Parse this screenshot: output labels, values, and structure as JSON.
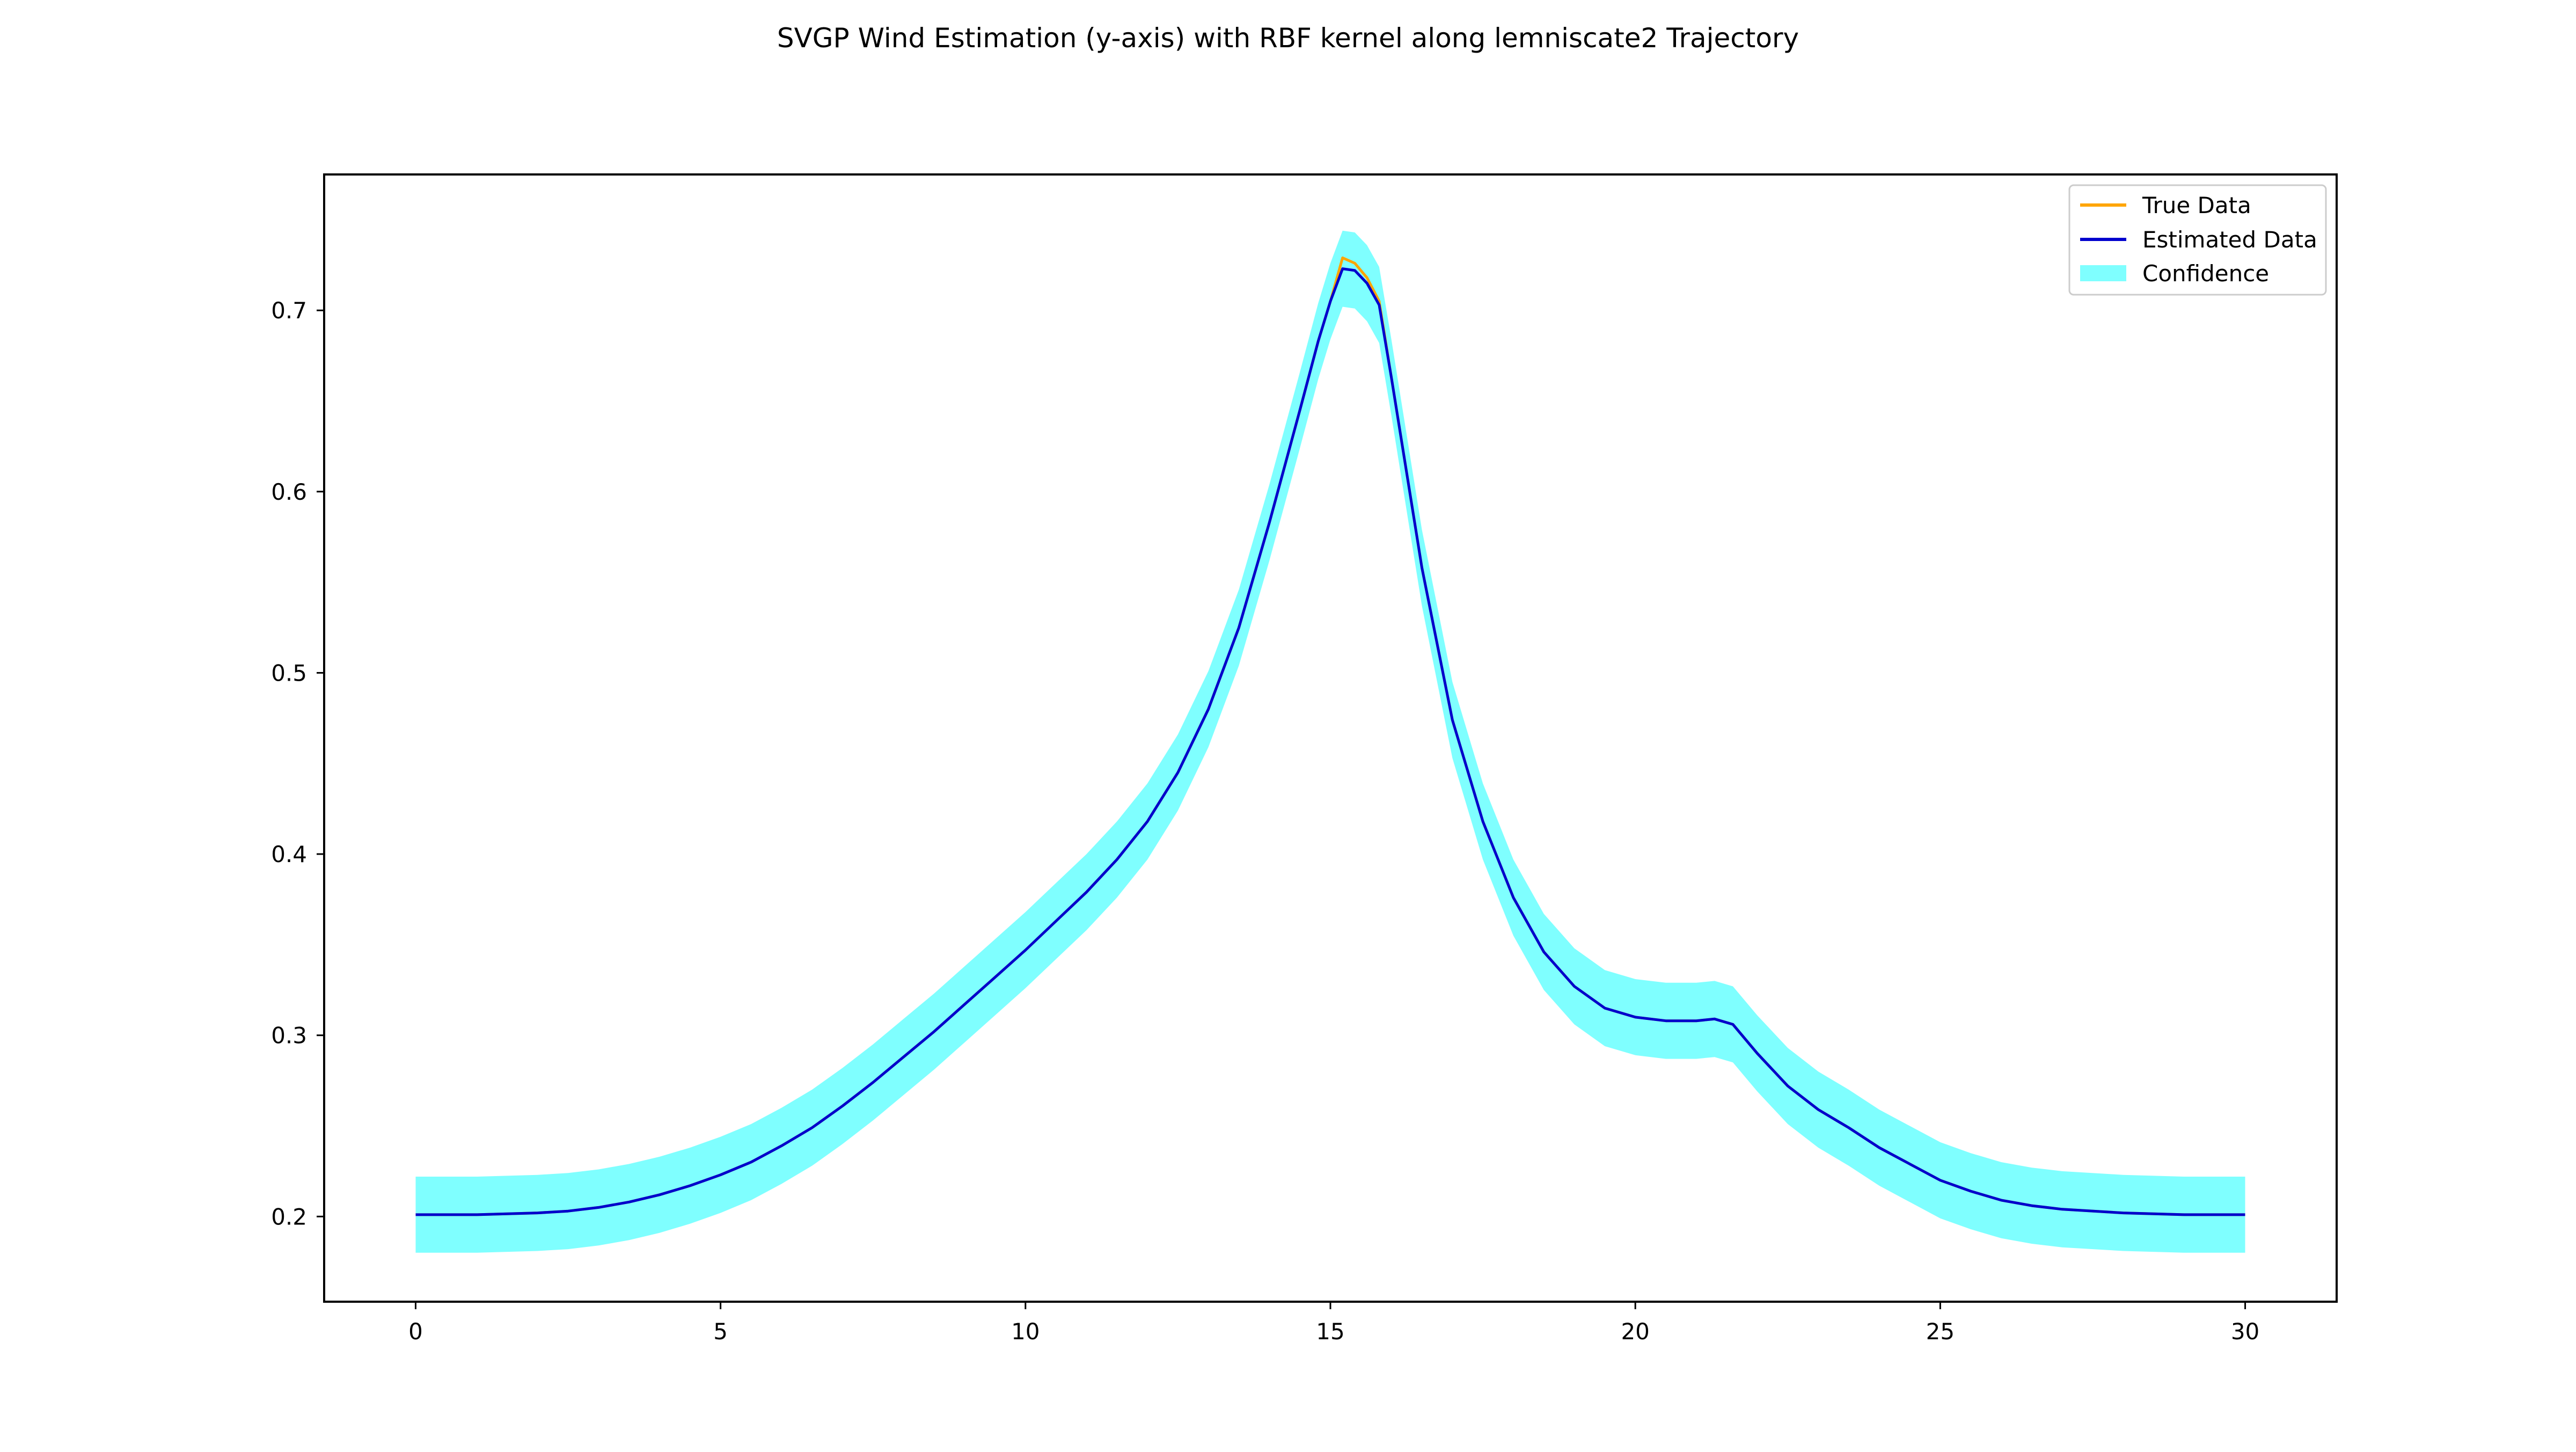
{
  "chart_data": {
    "type": "line",
    "title": "SVGP Wind Estimation (y-axis) with RBF kernel along lemniscate2 Trajectory",
    "xlabel": "",
    "ylabel": "",
    "xlim": [
      -1.5,
      31.5
    ],
    "ylim": [
      0.153,
      0.775
    ],
    "xticks": [
      0,
      5,
      10,
      15,
      20,
      25,
      30
    ],
    "yticks": [
      0.2,
      0.3,
      0.4,
      0.5,
      0.6,
      0.7
    ],
    "xtick_labels": [
      "0",
      "5",
      "10",
      "15",
      "20",
      "25",
      "30"
    ],
    "ytick_labels": [
      "0.2",
      "0.3",
      "0.4",
      "0.5",
      "0.6",
      "0.7"
    ],
    "grid": false,
    "legend_position": "upper right",
    "colors": {
      "true": "#ffa500",
      "estimated": "#0000cd",
      "confidence": "#00ffff"
    },
    "confidence_halfwidth": 0.021,
    "series": [
      {
        "name": "True Data",
        "kind": "line",
        "x": [
          0,
          1,
          2,
          2.5,
          3,
          3.5,
          4,
          4.5,
          5,
          5.5,
          6,
          6.5,
          7,
          7.5,
          8,
          8.5,
          9,
          9.5,
          10,
          10.5,
          11,
          11.5,
          12,
          12.5,
          13,
          13.5,
          14,
          14.5,
          14.8,
          15,
          15.2,
          15.4,
          15.6,
          15.8,
          16,
          16.5,
          17,
          17.5,
          18,
          18.5,
          19,
          19.5,
          20,
          20.5,
          21,
          21.3,
          21.6,
          22,
          22.5,
          23,
          23.5,
          24,
          24.5,
          25,
          25.5,
          26,
          26.5,
          27,
          28,
          29,
          30
        ],
        "y": [
          0.201,
          0.201,
          0.202,
          0.203,
          0.205,
          0.208,
          0.212,
          0.217,
          0.223,
          0.23,
          0.239,
          0.249,
          0.261,
          0.274,
          0.288,
          0.302,
          0.317,
          0.332,
          0.347,
          0.363,
          0.379,
          0.397,
          0.418,
          0.445,
          0.48,
          0.525,
          0.583,
          0.645,
          0.683,
          0.705,
          0.729,
          0.726,
          0.718,
          0.705,
          0.663,
          0.558,
          0.474,
          0.418,
          0.376,
          0.346,
          0.327,
          0.315,
          0.31,
          0.308,
          0.308,
          0.309,
          0.306,
          0.29,
          0.272,
          0.259,
          0.249,
          0.238,
          0.229,
          0.22,
          0.214,
          0.209,
          0.206,
          0.204,
          0.202,
          0.201,
          0.201
        ]
      },
      {
        "name": "Estimated Data",
        "kind": "line",
        "x": [
          0,
          1,
          2,
          2.5,
          3,
          3.5,
          4,
          4.5,
          5,
          5.5,
          6,
          6.5,
          7,
          7.5,
          8,
          8.5,
          9,
          9.5,
          10,
          10.5,
          11,
          11.5,
          12,
          12.5,
          13,
          13.5,
          14,
          14.5,
          14.8,
          15,
          15.2,
          15.4,
          15.6,
          15.8,
          16,
          16.5,
          17,
          17.5,
          18,
          18.5,
          19,
          19.5,
          20,
          20.5,
          21,
          21.3,
          21.6,
          22,
          22.5,
          23,
          23.5,
          24,
          24.5,
          25,
          25.5,
          26,
          26.5,
          27,
          28,
          29,
          30
        ],
        "y": [
          0.201,
          0.201,
          0.202,
          0.203,
          0.205,
          0.208,
          0.212,
          0.217,
          0.223,
          0.23,
          0.239,
          0.249,
          0.261,
          0.274,
          0.288,
          0.302,
          0.317,
          0.332,
          0.347,
          0.363,
          0.379,
          0.397,
          0.418,
          0.445,
          0.48,
          0.525,
          0.583,
          0.645,
          0.683,
          0.705,
          0.723,
          0.722,
          0.715,
          0.703,
          0.663,
          0.558,
          0.474,
          0.418,
          0.376,
          0.346,
          0.327,
          0.315,
          0.31,
          0.308,
          0.308,
          0.309,
          0.306,
          0.29,
          0.272,
          0.259,
          0.249,
          0.238,
          0.229,
          0.22,
          0.214,
          0.209,
          0.206,
          0.204,
          0.202,
          0.201,
          0.201
        ]
      },
      {
        "name": "Confidence",
        "kind": "band",
        "around": "Estimated Data",
        "halfwidth": 0.021
      }
    ]
  }
}
